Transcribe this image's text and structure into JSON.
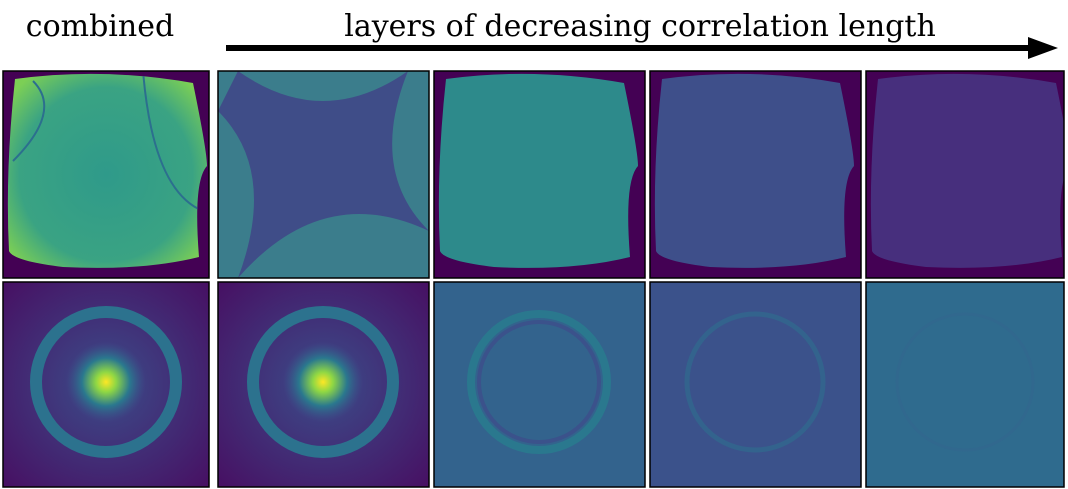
{
  "header": {
    "left_label": "combined",
    "arrow_label": "layers of decreasing correlation length"
  }
}
